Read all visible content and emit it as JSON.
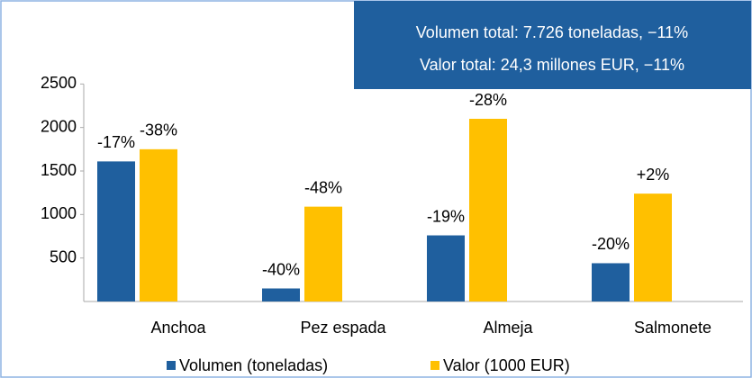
{
  "chart_data": {
    "type": "bar",
    "annotations": [
      "Volumen total: 7.726 toneladas, −11%",
      "Valor total: 24,3 millones EUR, −11%"
    ],
    "categories": [
      "Anchoa",
      "Pez espada",
      "Almeja",
      "Salmonete"
    ],
    "series": [
      {
        "name": "Volumen (toneladas)",
        "color": "#1f5f9e",
        "values": [
          1610,
          150,
          760,
          440
        ],
        "changes": [
          "-17%",
          "-40%",
          "-19%",
          "-20%"
        ]
      },
      {
        "name": "Valor (1000 EUR)",
        "color": "#ffc000",
        "values": [
          1750,
          1090,
          2100,
          1240
        ],
        "changes": [
          "-38%",
          "-48%",
          "-28%",
          "+2%"
        ]
      }
    ],
    "ylim": [
      0,
      3000
    ],
    "yticks": [
      500,
      1000,
      1500,
      2000,
      2500
    ],
    "grid": false,
    "legend": "bottom"
  }
}
